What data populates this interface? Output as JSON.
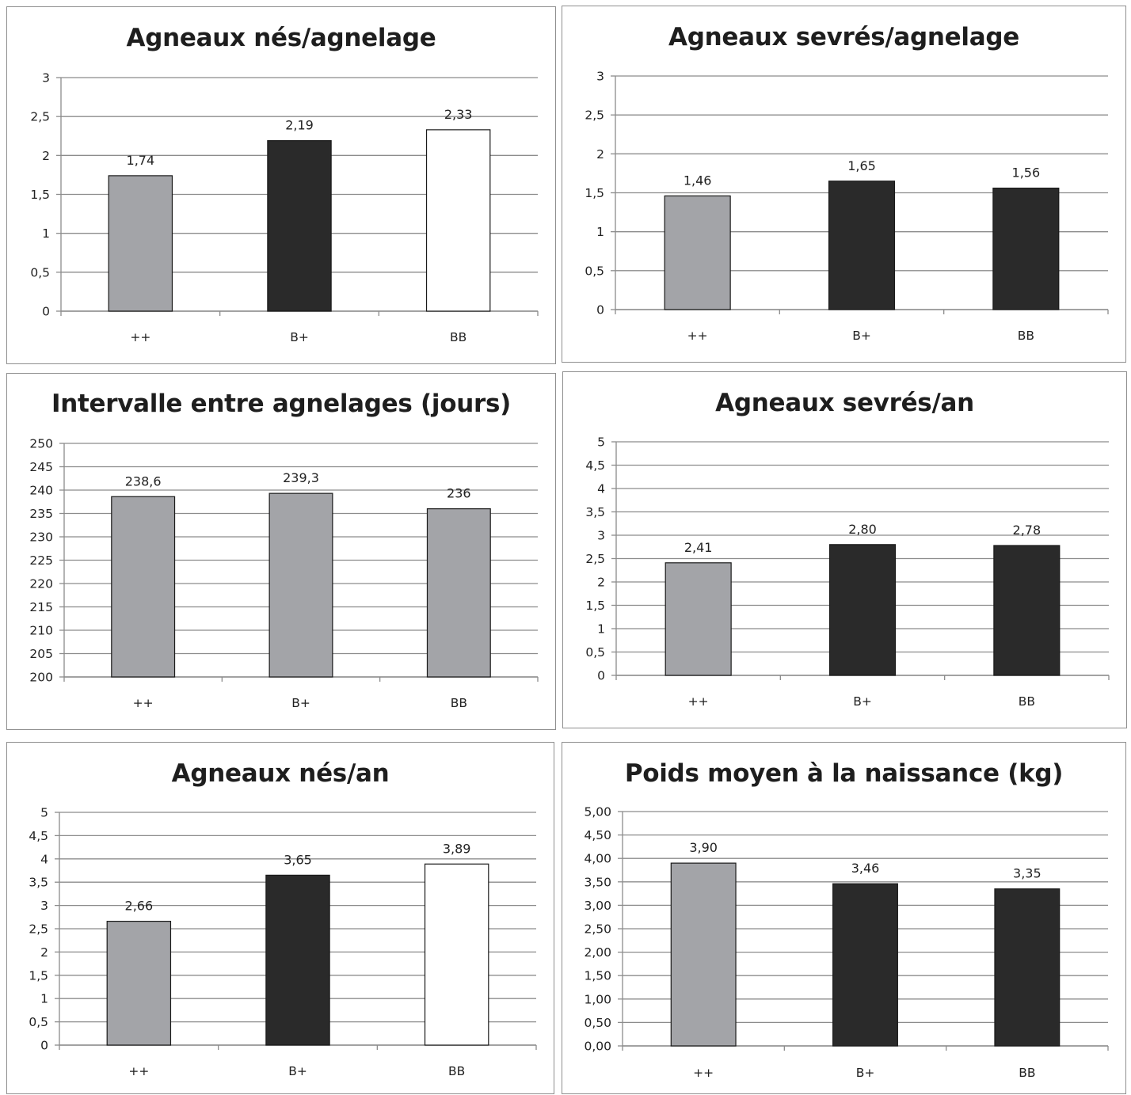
{
  "colors": {
    "light": "#a3a4a8",
    "dark": "#2a2a2a",
    "white": "#ffffff",
    "grid": "#8c8c8c"
  },
  "chart_data": [
    {
      "type": "bar",
      "title": "Agneaux nés/agnelage",
      "categories": [
        "++",
        "B+",
        "BB"
      ],
      "values": [
        1.74,
        2.19,
        2.33
      ],
      "data_labels": [
        "1,74",
        "2,19",
        "2,33"
      ],
      "bar_colors": [
        "light",
        "dark",
        "white"
      ],
      "ylim": [
        0,
        3
      ],
      "yticks": [
        0,
        0.5,
        1,
        1.5,
        2,
        2.5,
        3
      ],
      "ytick_labels": [
        "0",
        "0,5",
        "1",
        "1,5",
        "2",
        "2,5",
        "3"
      ],
      "grid": true
    },
    {
      "type": "bar",
      "title": "Agneaux sevrés/agnelage",
      "categories": [
        "++",
        "B+",
        "BB"
      ],
      "values": [
        1.46,
        1.65,
        1.56
      ],
      "data_labels": [
        "1,46",
        "1,65",
        "1,56"
      ],
      "bar_colors": [
        "light",
        "dark",
        "dark"
      ],
      "ylim": [
        0,
        3
      ],
      "yticks": [
        0,
        0.5,
        1,
        1.5,
        2,
        2.5,
        3
      ],
      "ytick_labels": [
        "0",
        "0,5",
        "1",
        "1,5",
        "2",
        "2,5",
        "3"
      ],
      "grid": true
    },
    {
      "type": "bar",
      "title": "Intervalle entre agnelages (jours)",
      "categories": [
        "++",
        "B+",
        "BB"
      ],
      "values": [
        238.6,
        239.3,
        236
      ],
      "data_labels": [
        "238,6",
        "239,3",
        "236"
      ],
      "bar_colors": [
        "light",
        "light",
        "light"
      ],
      "ylim": [
        200,
        250
      ],
      "yticks": [
        200,
        205,
        210,
        215,
        220,
        225,
        230,
        235,
        240,
        245,
        250
      ],
      "ytick_labels": [
        "200",
        "205",
        "210",
        "215",
        "220",
        "225",
        "230",
        "235",
        "240",
        "245",
        "250"
      ],
      "grid": true
    },
    {
      "type": "bar",
      "title": "Agneaux sevrés/an",
      "categories": [
        "++",
        "B+",
        "BB"
      ],
      "values": [
        2.41,
        2.8,
        2.78
      ],
      "data_labels": [
        "2,41",
        "2,80",
        "2,78"
      ],
      "bar_colors": [
        "light",
        "dark",
        "dark"
      ],
      "ylim": [
        0,
        5
      ],
      "yticks": [
        0,
        0.5,
        1,
        1.5,
        2,
        2.5,
        3,
        3.5,
        4,
        4.5,
        5
      ],
      "ytick_labels": [
        "0",
        "0,5",
        "1",
        "1,5",
        "2",
        "2,5",
        "3",
        "3,5",
        "4",
        "4,5",
        "5"
      ],
      "grid": true
    },
    {
      "type": "bar",
      "title": "Agneaux nés/an",
      "categories": [
        "++",
        "B+",
        "BB"
      ],
      "values": [
        2.66,
        3.65,
        3.89
      ],
      "data_labels": [
        "2,66",
        "3,65",
        "3,89"
      ],
      "bar_colors": [
        "light",
        "dark",
        "white"
      ],
      "ylim": [
        0,
        5
      ],
      "yticks": [
        0,
        0.5,
        1,
        1.5,
        2,
        2.5,
        3,
        3.5,
        4,
        4.5,
        5
      ],
      "ytick_labels": [
        "0",
        "0,5",
        "1",
        "1,5",
        "2",
        "2,5",
        "3",
        "3,5",
        "4",
        "4,5",
        "5"
      ],
      "grid": true
    },
    {
      "type": "bar",
      "title": "Poids moyen à la naissance (kg)",
      "categories": [
        "++",
        "B+",
        "BB"
      ],
      "values": [
        3.9,
        3.46,
        3.35
      ],
      "data_labels": [
        "3,90",
        "3,46",
        "3,35"
      ],
      "bar_colors": [
        "light",
        "dark",
        "dark"
      ],
      "ylim": [
        0,
        5
      ],
      "yticks": [
        0,
        0.5,
        1,
        1.5,
        2,
        2.5,
        3,
        3.5,
        4,
        4.5,
        5
      ],
      "ytick_labels": [
        "0,00",
        "0,50",
        "1,00",
        "1,50",
        "2,00",
        "2,50",
        "3,00",
        "3,50",
        "4,00",
        "4,50",
        "5,00"
      ],
      "grid": true
    }
  ]
}
